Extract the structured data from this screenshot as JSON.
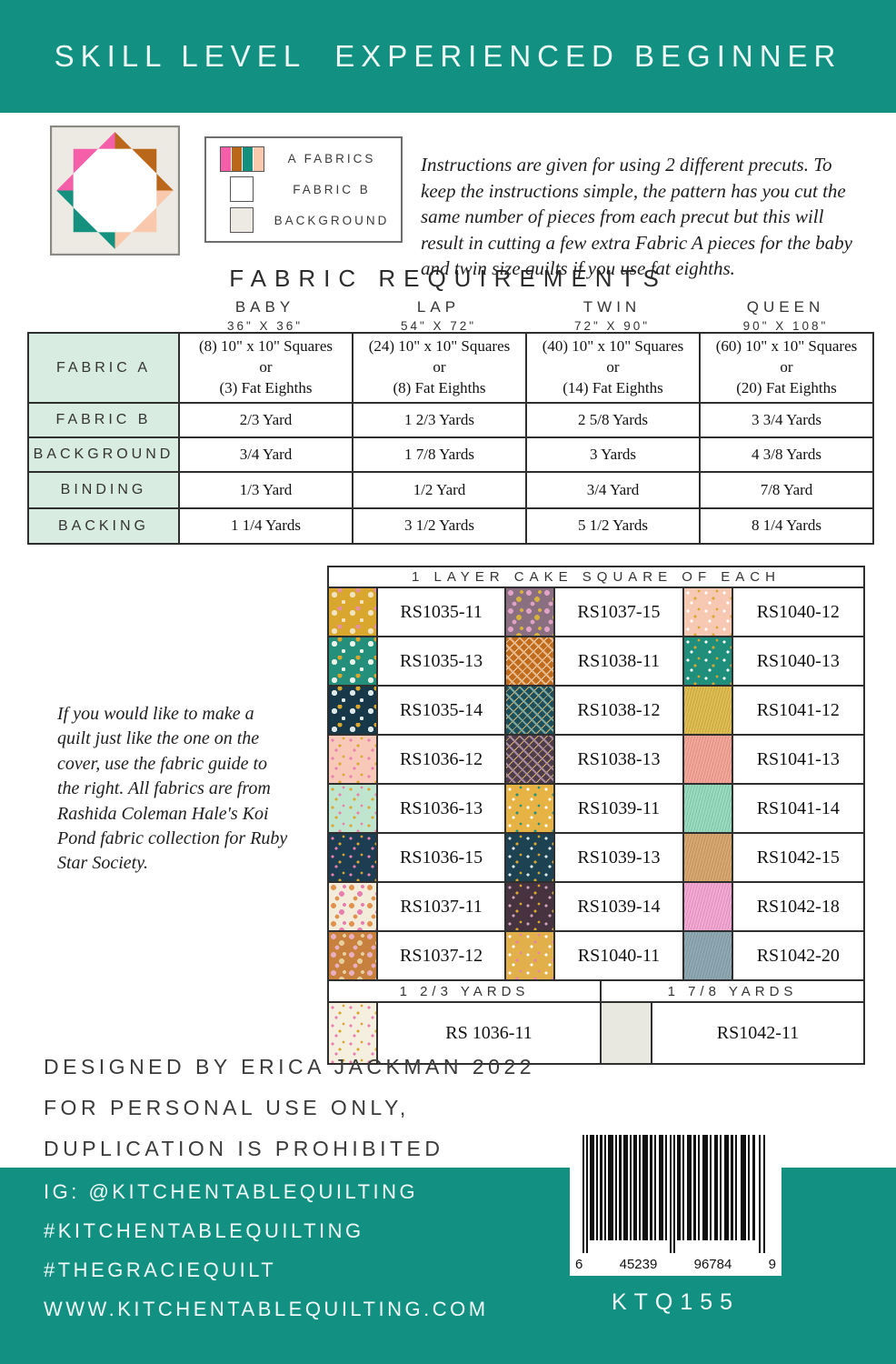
{
  "banner": {
    "title": "SKILL LEVEL  EXPERIENCED BEGINNER"
  },
  "colors": {
    "teal": "#129081",
    "pink": "#f55fa9",
    "orange": "#bb671a",
    "block_teal": "#14917e",
    "peach": "#f9c8ad",
    "block_bg": "#eceae2",
    "mint": "#d9ece1"
  },
  "legend": {
    "items": [
      {
        "label": "A FABRICS"
      },
      {
        "label": "FABRIC B"
      },
      {
        "label": "BACKGROUND"
      }
    ]
  },
  "intro": {
    "text": "Instructions are given for using 2 different precuts. To keep the instructions simple, the pattern has you cut the same number of pieces from each precut but this will result in cutting a few extra Fabric A pieces for the baby and twin size quilts if you use fat eighths."
  },
  "fabric_requirements": {
    "title": "FABRIC REQUIREMENTS",
    "columns": [
      {
        "name": "BABY",
        "size": "36\" X 36\""
      },
      {
        "name": "LAP",
        "size": "54\" X 72\""
      },
      {
        "name": "TWIN",
        "size": "72\" X 90\""
      },
      {
        "name": "QUEEN",
        "size": "90\" X 108\""
      }
    ],
    "rows": [
      {
        "label": "FABRIC A",
        "values": [
          "(8) 10\" x 10\" Squares\nor\n(3) Fat Eighths",
          "(24) 10\" x 10\" Squares\nor\n(8) Fat Eighths",
          "(40) 10\" x 10\" Squares\nor\n(14) Fat Eighths",
          "(60) 10\" x 10\" Squares\nor\n(20) Fat Eighths"
        ]
      },
      {
        "label": "FABRIC B",
        "values": [
          "2/3 Yard",
          "1 2/3 Yards",
          "2 5/8 Yards",
          "3 3/4 Yards"
        ]
      },
      {
        "label": "BACKGROUND",
        "values": [
          "3/4 Yard",
          "1 7/8 Yards",
          "3 Yards",
          "4 3/8 Yards"
        ]
      },
      {
        "label": "BINDING",
        "values": [
          "1/3 Yard",
          "1/2 Yard",
          "3/4 Yard",
          "7/8 Yard"
        ]
      },
      {
        "label": "BACKING",
        "values": [
          "1 1/4 Yards",
          "3 1/2 Yards",
          "5 1/2 Yards",
          "8 1/4 Yards"
        ]
      }
    ]
  },
  "note": {
    "text": "If you would like to make a quilt just like the one on the cover, use the fabric guide to the right. All fabrics are from Rashida Coleman Hale's Koi Pond fabric collection for Ruby Star Society."
  },
  "layer_cake": {
    "header": "1 LAYER CAKE SQUARE OF EACH",
    "rows": [
      [
        {
          "code": "RS1035-11",
          "swatch": {
            "bg": "#d9a62e",
            "pat": "dots",
            "f1": "#f2e3c0",
            "f2": "#e88fa0"
          }
        },
        {
          "code": "RS1037-15",
          "swatch": {
            "bg": "#8a6f80",
            "pat": "floral",
            "f1": "#e0a3c6",
            "f2": "#d7b13e"
          }
        },
        {
          "code": "RS1040-12",
          "swatch": {
            "bg": "#f7c8b2",
            "pat": "confetti",
            "f1": "#ffffff",
            "f2": "#d9a62e"
          }
        }
      ],
      [
        {
          "code": "RS1035-13",
          "swatch": {
            "bg": "#24907c",
            "pat": "dots",
            "f1": "#e8f2e6",
            "f2": "#d9a62e"
          }
        },
        {
          "code": "RS1038-11",
          "swatch": {
            "bg": "#c16c1d",
            "pat": "diamond",
            "f1": "#e9b98a",
            "f2": "#f0d9bf"
          }
        },
        {
          "code": "RS1040-13",
          "swatch": {
            "bg": "#1f8f7b",
            "pat": "confetti",
            "f1": "#ffffff",
            "f2": "#d9a62e"
          }
        }
      ],
      [
        {
          "code": "RS1035-14",
          "swatch": {
            "bg": "#173848",
            "pat": "dots",
            "f1": "#dfe8e8",
            "f2": "#d9a62e"
          }
        },
        {
          "code": "RS1038-12",
          "swatch": {
            "bg": "#1d4f5a",
            "pat": "diamond",
            "f1": "#7fa8a0",
            "f2": "#d9b36a"
          }
        },
        {
          "code": "RS1041-12",
          "swatch": {
            "bg": "#dfbe55",
            "pat": "texture",
            "f1": "#c9a53e"
          }
        }
      ],
      [
        {
          "code": "RS1036-12",
          "swatch": {
            "bg": "#f8c9b8",
            "pat": "confetti",
            "f1": "#e87fae",
            "f2": "#d9a62e"
          }
        },
        {
          "code": "RS1038-13",
          "swatch": {
            "bg": "#4e3c4a",
            "pat": "diamond",
            "f1": "#a98ba0",
            "f2": "#d9b36a"
          }
        },
        {
          "code": "RS1041-13",
          "swatch": {
            "bg": "#f3a89c",
            "pat": "texture",
            "f1": "#e08e84"
          }
        }
      ],
      [
        {
          "code": "RS1036-13",
          "swatch": {
            "bg": "#bfe5cf",
            "pat": "confetti",
            "f1": "#d9a62e",
            "f2": "#e87fae"
          }
        },
        {
          "code": "RS1039-11",
          "swatch": {
            "bg": "#e7b344",
            "pat": "confetti",
            "f1": "#ffffff",
            "f2": "#2a907c"
          }
        },
        {
          "code": "RS1041-14",
          "swatch": {
            "bg": "#9bdcc0",
            "pat": "texture",
            "f1": "#7cc4a6"
          }
        }
      ],
      [
        {
          "code": "RS1036-15",
          "swatch": {
            "bg": "#1d3d52",
            "pat": "confetti",
            "f1": "#e87fae",
            "f2": "#d9a62e"
          }
        },
        {
          "code": "RS1039-13",
          "swatch": {
            "bg": "#1d4353",
            "pat": "confetti",
            "f1": "#e0e8ea",
            "f2": "#d9a62e"
          }
        },
        {
          "code": "RS1042-15",
          "swatch": {
            "bg": "#d8a974",
            "pat": "texture",
            "f1": "#c19158"
          }
        }
      ],
      [
        {
          "code": "RS1037-11",
          "swatch": {
            "bg": "#f3ecdb",
            "pat": "floral",
            "f1": "#e0924e",
            "f2": "#e87fae"
          }
        },
        {
          "code": "RS1039-14",
          "swatch": {
            "bg": "#47323f",
            "pat": "confetti",
            "f1": "#cfa3b8",
            "f2": "#d9a62e"
          }
        },
        {
          "code": "RS1042-18",
          "swatch": {
            "bg": "#f2abd2",
            "pat": "texture",
            "f1": "#e18cc0"
          }
        }
      ],
      [
        {
          "code": "RS1037-12",
          "swatch": {
            "bg": "#c8803e",
            "pat": "floral",
            "f1": "#e8b0c2",
            "f2": "#e7cf9d"
          }
        },
        {
          "code": "RS1040-11",
          "swatch": {
            "bg": "#e2b04a",
            "pat": "confetti",
            "f1": "#ffffff",
            "f2": "#e87fae"
          }
        },
        {
          "code": "RS1042-20",
          "swatch": {
            "bg": "#91a9b3",
            "pat": "texture",
            "f1": "#7b95a1"
          }
        }
      ]
    ],
    "yardage": [
      "1 2/3 YARDS",
      "1 7/8 YARDS"
    ],
    "bottom": [
      {
        "code": "RS 1036-11",
        "swatch": {
          "bg": "#f5efe0",
          "pat": "confetti",
          "f1": "#e87fae",
          "f2": "#d9a62e"
        }
      },
      {
        "code": "RS1042-11",
        "swatch": {
          "bg": "#e9e8e0",
          "pat": "plain"
        }
      }
    ]
  },
  "footer": {
    "designed_lines": [
      "DESIGNED BY ERICA JACKMAN 2022",
      "FOR PERSONAL USE ONLY,",
      "DUPLICATION IS PROHIBITED"
    ],
    "social_lines": [
      "IG: @KITCHENTABLEQUILTING",
      "#KITCHENTABLEQUILTING",
      "#THEGRACIEQUILT",
      "WWW.KITCHENTABLEQUILTING.COM"
    ],
    "barcode": {
      "digits": [
        "6",
        "45239",
        "96784",
        "9"
      ],
      "sku": "KTQ155"
    }
  }
}
